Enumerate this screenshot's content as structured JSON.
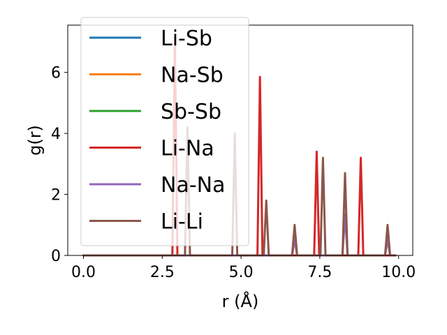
{
  "chart_data": {
    "type": "line",
    "xlabel": "r (Å)",
    "ylabel": "g(r)",
    "xlim": [
      -0.5,
      10.45
    ],
    "ylim": [
      0,
      7.55
    ],
    "xticks": [
      0.0,
      2.5,
      5.0,
      7.5,
      10.0
    ],
    "xtick_labels": [
      "0.0",
      "2.5",
      "5.0",
      "7.5",
      "10.0"
    ],
    "yticks": [
      0,
      2,
      4,
      6
    ],
    "ytick_labels": [
      "0",
      "2",
      "4",
      "6"
    ],
    "grid": false,
    "legend_position": "top-left",
    "peak_half_width": 0.08,
    "r_max": 9.9,
    "series": [
      {
        "name": "Li-Sb",
        "color": "#1f77b4",
        "peaks": []
      },
      {
        "name": "Na-Sb",
        "color": "#ff7f0e",
        "peaks": []
      },
      {
        "name": "Sb-Sb",
        "color": "#2ca02c",
        "peaks": []
      },
      {
        "name": "Li-Na",
        "color": "#d62728",
        "peaks": [
          [
            2.9,
            7.2
          ],
          [
            5.6,
            5.85
          ],
          [
            7.4,
            3.4
          ],
          [
            8.8,
            3.2
          ]
        ]
      },
      {
        "name": "Na-Na",
        "color": "#9467bd",
        "peaks": [
          [
            6.7,
            0.5
          ],
          [
            8.3,
            1.35
          ],
          [
            9.65,
            0.5
          ]
        ]
      },
      {
        "name": "Li-Li",
        "color": "#8c564b",
        "peaks": [
          [
            3.3,
            4.2
          ],
          [
            4.8,
            4.0
          ],
          [
            5.8,
            1.8
          ],
          [
            6.7,
            1.0
          ],
          [
            7.6,
            3.2
          ],
          [
            8.3,
            2.7
          ],
          [
            9.65,
            1.0
          ]
        ]
      }
    ]
  }
}
